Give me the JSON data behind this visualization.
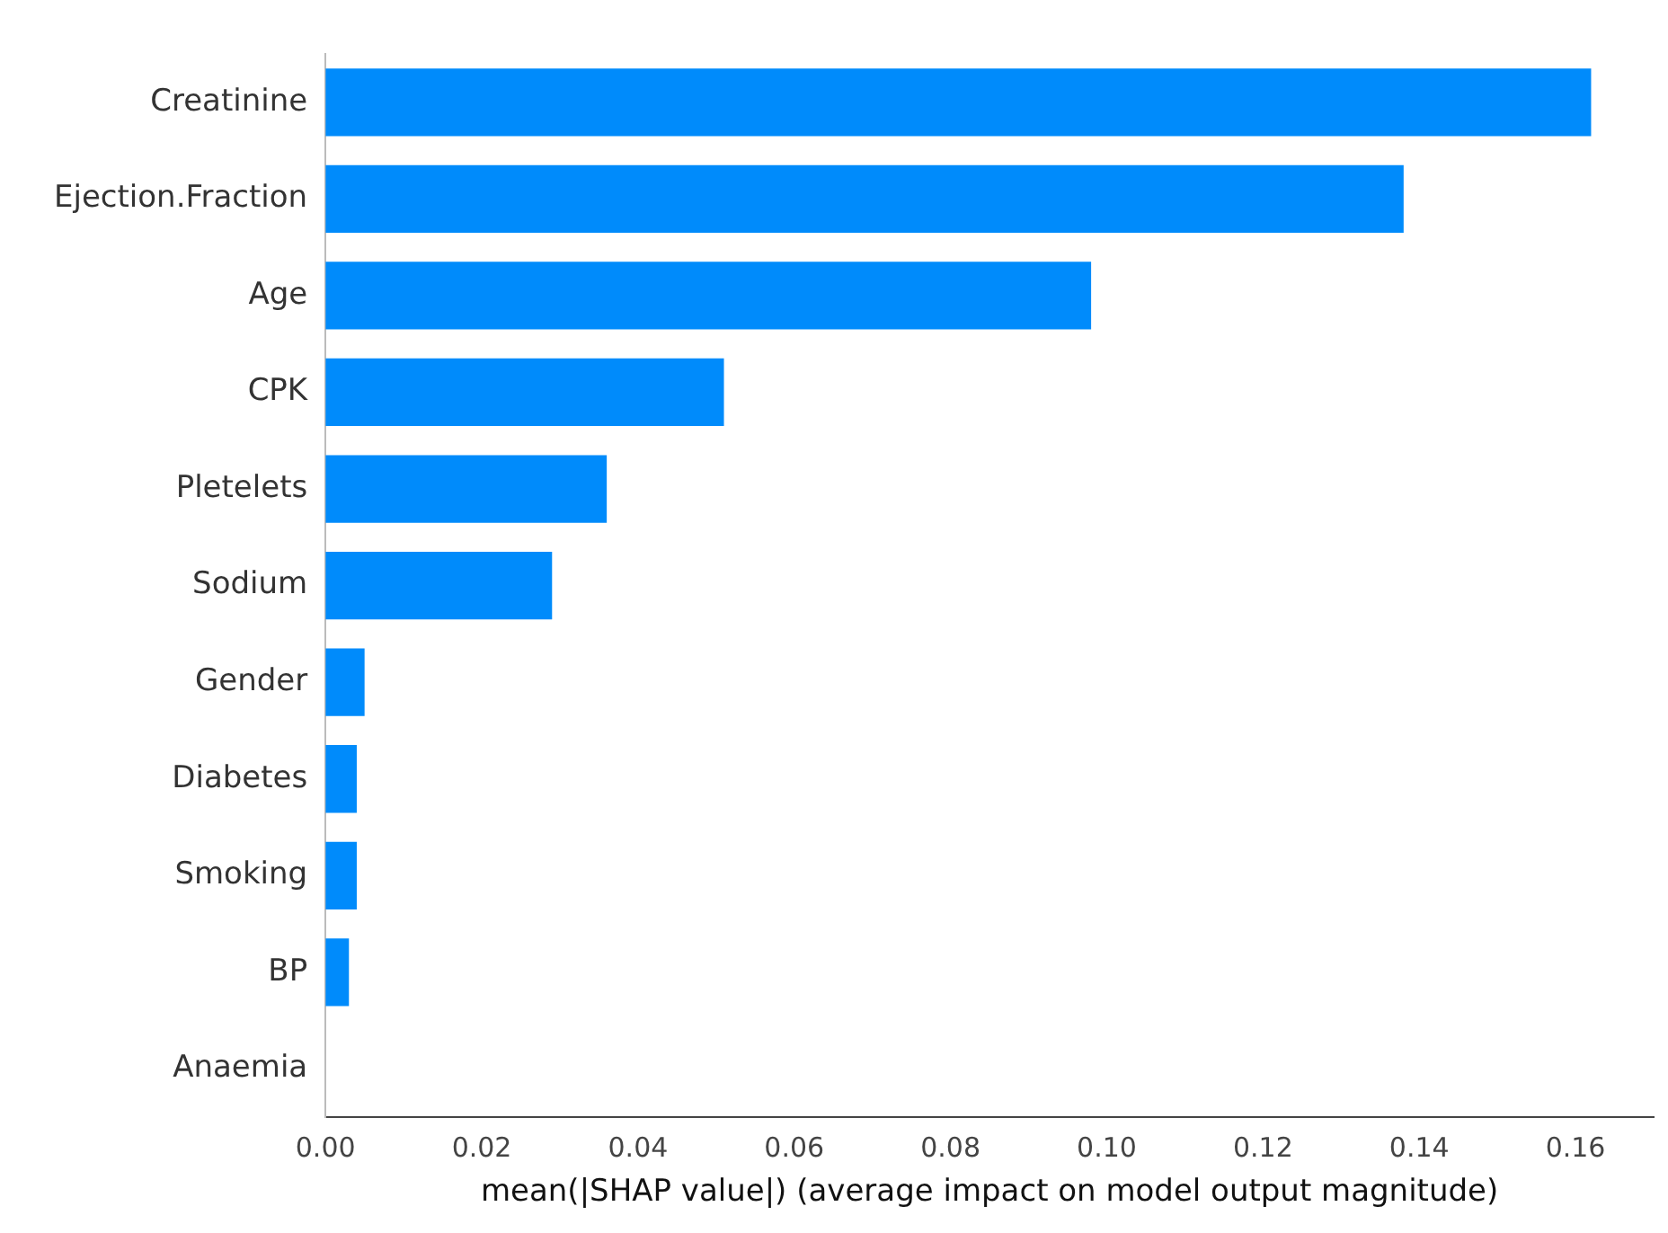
{
  "chart_data": {
    "type": "bar",
    "orientation": "horizontal",
    "xlabel": "mean(|SHAP value|) (average impact on model output magnitude)",
    "categories": [
      "Creatinine",
      "Ejection.Fraction",
      "Age",
      "CPK",
      "Pletelets",
      "Sodium",
      "Gender",
      "Diabetes",
      "Smoking",
      "BP",
      "Anaemia"
    ],
    "values": [
      0.162,
      0.138,
      0.098,
      0.051,
      0.036,
      0.029,
      0.005,
      0.004,
      0.004,
      0.003,
      0
    ],
    "color": "#008bfb",
    "xlim": [
      0,
      0.17
    ],
    "xticks": [
      {
        "value": 0,
        "label": "0.00"
      },
      {
        "value": 0.02,
        "label": "0.02"
      },
      {
        "value": 0.04,
        "label": "0.04"
      },
      {
        "value": 0.06,
        "label": "0.06"
      },
      {
        "value": 0.08,
        "label": "0.08"
      },
      {
        "value": 0.1,
        "label": "0.10"
      },
      {
        "value": 0.12,
        "label": "0.12"
      },
      {
        "value": 0.14,
        "label": "0.14"
      },
      {
        "value": 0.16,
        "label": "0.16"
      }
    ],
    "grid": false,
    "legend": false
  }
}
